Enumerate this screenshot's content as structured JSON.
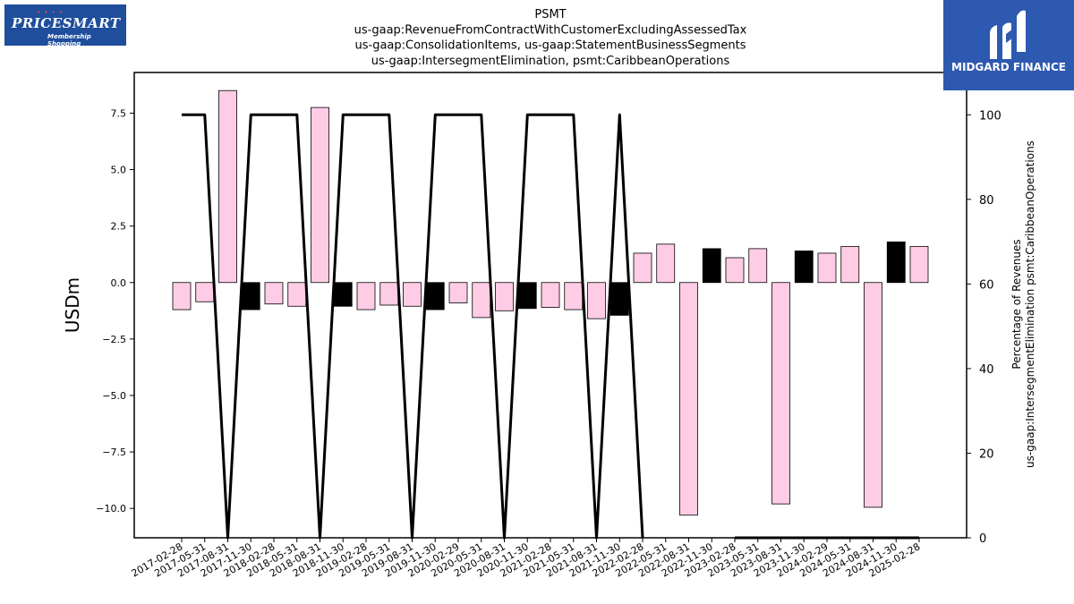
{
  "logos": {
    "left_brand": "PRICESMART",
    "left_tagline": "Membership Shopping",
    "right_brand": "MIDGARD FINANCE"
  },
  "chart_data": {
    "type": "bar",
    "title_lines": [
      "PSMT",
      "us-gaap:RevenueFromContractWithCustomerExcludingAssessedTax",
      "us-gaap:ConsolidationItems, us-gaap:StatementBusinessSegments",
      "us-gaap:IntersegmentElimination, psmt:CaribbeanOperations"
    ],
    "ylabel": "USDm",
    "y2label_lines": [
      "Percentage of Revenues",
      "us-gaap:IntersegmentElimination psmt:CaribbeanOperations"
    ],
    "ylim": [
      -11.3,
      9.3
    ],
    "y2lim": [
      0,
      110
    ],
    "yticks": [
      -10.0,
      -7.5,
      -5.0,
      -2.5,
      0.0,
      2.5,
      5.0,
      7.5
    ],
    "y2ticks": [
      0,
      20,
      40,
      60,
      80,
      100
    ],
    "categories": [
      "2017-02-28",
      "2017-05-31",
      "2017-08-31",
      "2017-11-30",
      "2018-02-28",
      "2018-05-31",
      "2018-08-31",
      "2018-11-30",
      "2019-02-28",
      "2019-05-31",
      "2019-08-31",
      "2019-11-30",
      "2020-02-29",
      "2020-05-31",
      "2020-08-31",
      "2020-11-30",
      "2021-02-28",
      "2021-05-31",
      "2021-08-31",
      "2021-11-30",
      "2022-02-28",
      "2022-05-31",
      "2022-08-31",
      "2022-11-30",
      "2023-02-28",
      "2023-05-31",
      "2023-08-31",
      "2023-11-30",
      "2024-02-29",
      "2024-05-31",
      "2024-08-31",
      "2024-11-30",
      "2025-02-28"
    ],
    "values": [
      -1.2,
      -0.85,
      8.5,
      -1.2,
      -0.95,
      -1.05,
      7.75,
      -1.05,
      -1.2,
      -1.0,
      -1.05,
      -1.2,
      -0.9,
      -1.55,
      -1.25,
      -1.15,
      -1.1,
      -1.2,
      -1.6,
      -1.45,
      1.3,
      1.7,
      -10.3,
      1.5,
      1.1,
      1.5,
      -9.8,
      1.4,
      1.3,
      1.6,
      -9.95,
      1.8,
      1.6
    ],
    "bar_colors": [
      "#ffcce6",
      "#ffcce6",
      "#ffcce6",
      "#000000",
      "#ffcce6",
      "#ffcce6",
      "#ffcce6",
      "#000000",
      "#ffcce6",
      "#ffcce6",
      "#ffcce6",
      "#000000",
      "#ffcce6",
      "#ffcce6",
      "#ffcce6",
      "#000000",
      "#ffcce6",
      "#ffcce6",
      "#ffcce6",
      "#000000",
      "#ffcce6",
      "#ffcce6",
      "#ffcce6",
      "#000000",
      "#ffcce6",
      "#ffcce6",
      "#ffcce6",
      "#000000",
      "#ffcce6",
      "#ffcce6",
      "#ffcce6",
      "#000000",
      "#ffcce6"
    ],
    "line_series": {
      "axis": "right",
      "color": "#000000",
      "values": [
        100,
        100,
        0,
        100,
        100,
        100,
        0,
        100,
        100,
        100,
        0,
        100,
        100,
        100,
        0,
        100,
        100,
        100,
        0,
        100,
        0,
        null,
        null,
        null,
        0,
        0,
        0,
        0,
        0,
        0,
        0,
        0,
        0
      ]
    }
  }
}
